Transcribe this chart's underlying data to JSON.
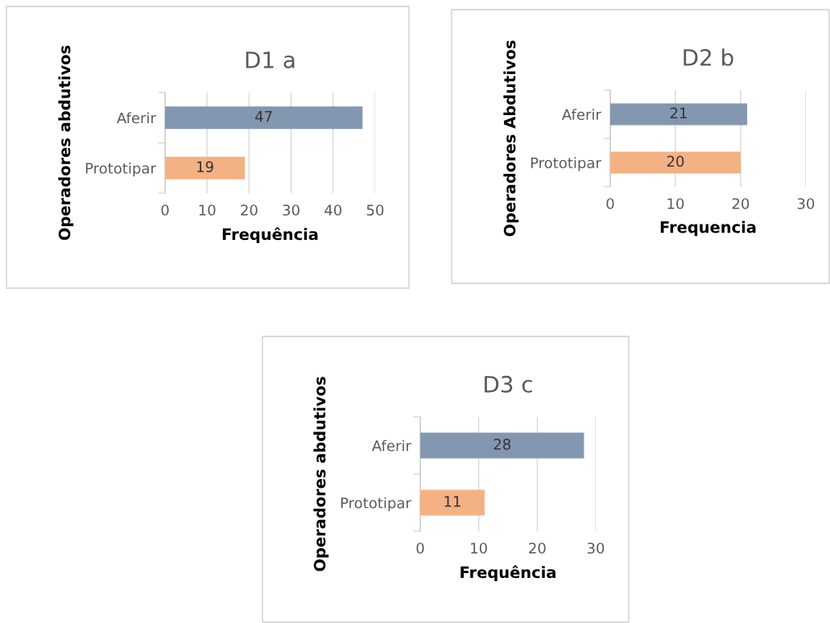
{
  "chart_data": [
    {
      "type": "bar",
      "orientation": "horizontal",
      "title": "D1 a",
      "xlabel": "Frequência",
      "ylabel": "Operadores abdutivos",
      "categories": [
        "Aferir",
        "Prototipar"
      ],
      "values": [
        47,
        19
      ],
      "colors": [
        "#8497b0",
        "#f4b183"
      ],
      "xlim": [
        0,
        50
      ],
      "xticks": [
        0,
        10,
        20,
        30,
        40,
        50
      ],
      "grid": "x",
      "data_labels": true
    },
    {
      "type": "bar",
      "orientation": "horizontal",
      "title": "D2 b",
      "xlabel": "Frequencia",
      "ylabel": "Operadores Abdutivos",
      "categories": [
        "Aferir",
        "Prototipar"
      ],
      "values": [
        21,
        20
      ],
      "colors": [
        "#8497b0",
        "#f4b183"
      ],
      "xlim": [
        0,
        30
      ],
      "xticks": [
        0,
        10,
        20,
        30
      ],
      "grid": "x",
      "data_labels": true
    },
    {
      "type": "bar",
      "orientation": "horizontal",
      "title": "D3 c",
      "xlabel": "Frequência",
      "ylabel": "Operadores abdutivos",
      "categories": [
        "Aferir",
        "Prototipar"
      ],
      "values": [
        28,
        11
      ],
      "colors": [
        "#8497b0",
        "#f4b183"
      ],
      "xlim": [
        0,
        30
      ],
      "xticks": [
        0,
        10,
        20,
        30
      ],
      "grid": "x",
      "data_labels": true
    }
  ]
}
